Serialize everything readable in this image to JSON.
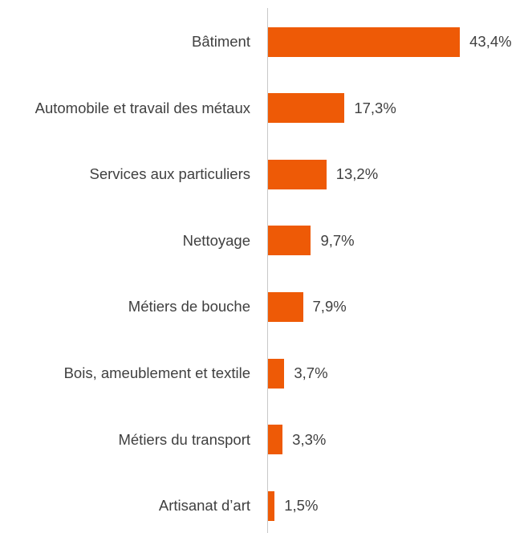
{
  "chart_data": {
    "type": "bar",
    "orientation": "horizontal",
    "categories": [
      "Bâtiment",
      "Automobile et travail des métaux",
      "Services aux particuliers",
      "Nettoyage",
      "Métiers de bouche",
      "Bois, ameublement et textile",
      "Métiers du transport",
      "Artisanat d’art"
    ],
    "values": [
      43.4,
      17.3,
      13.2,
      9.7,
      7.9,
      3.7,
      3.3,
      1.5
    ],
    "value_labels": [
      "43,4%",
      "17,3%",
      "13,2%",
      "9,7%",
      "7,9%",
      "3,7%",
      "3,3%",
      "1,5%"
    ],
    "color": "#ee5a06"
  }
}
